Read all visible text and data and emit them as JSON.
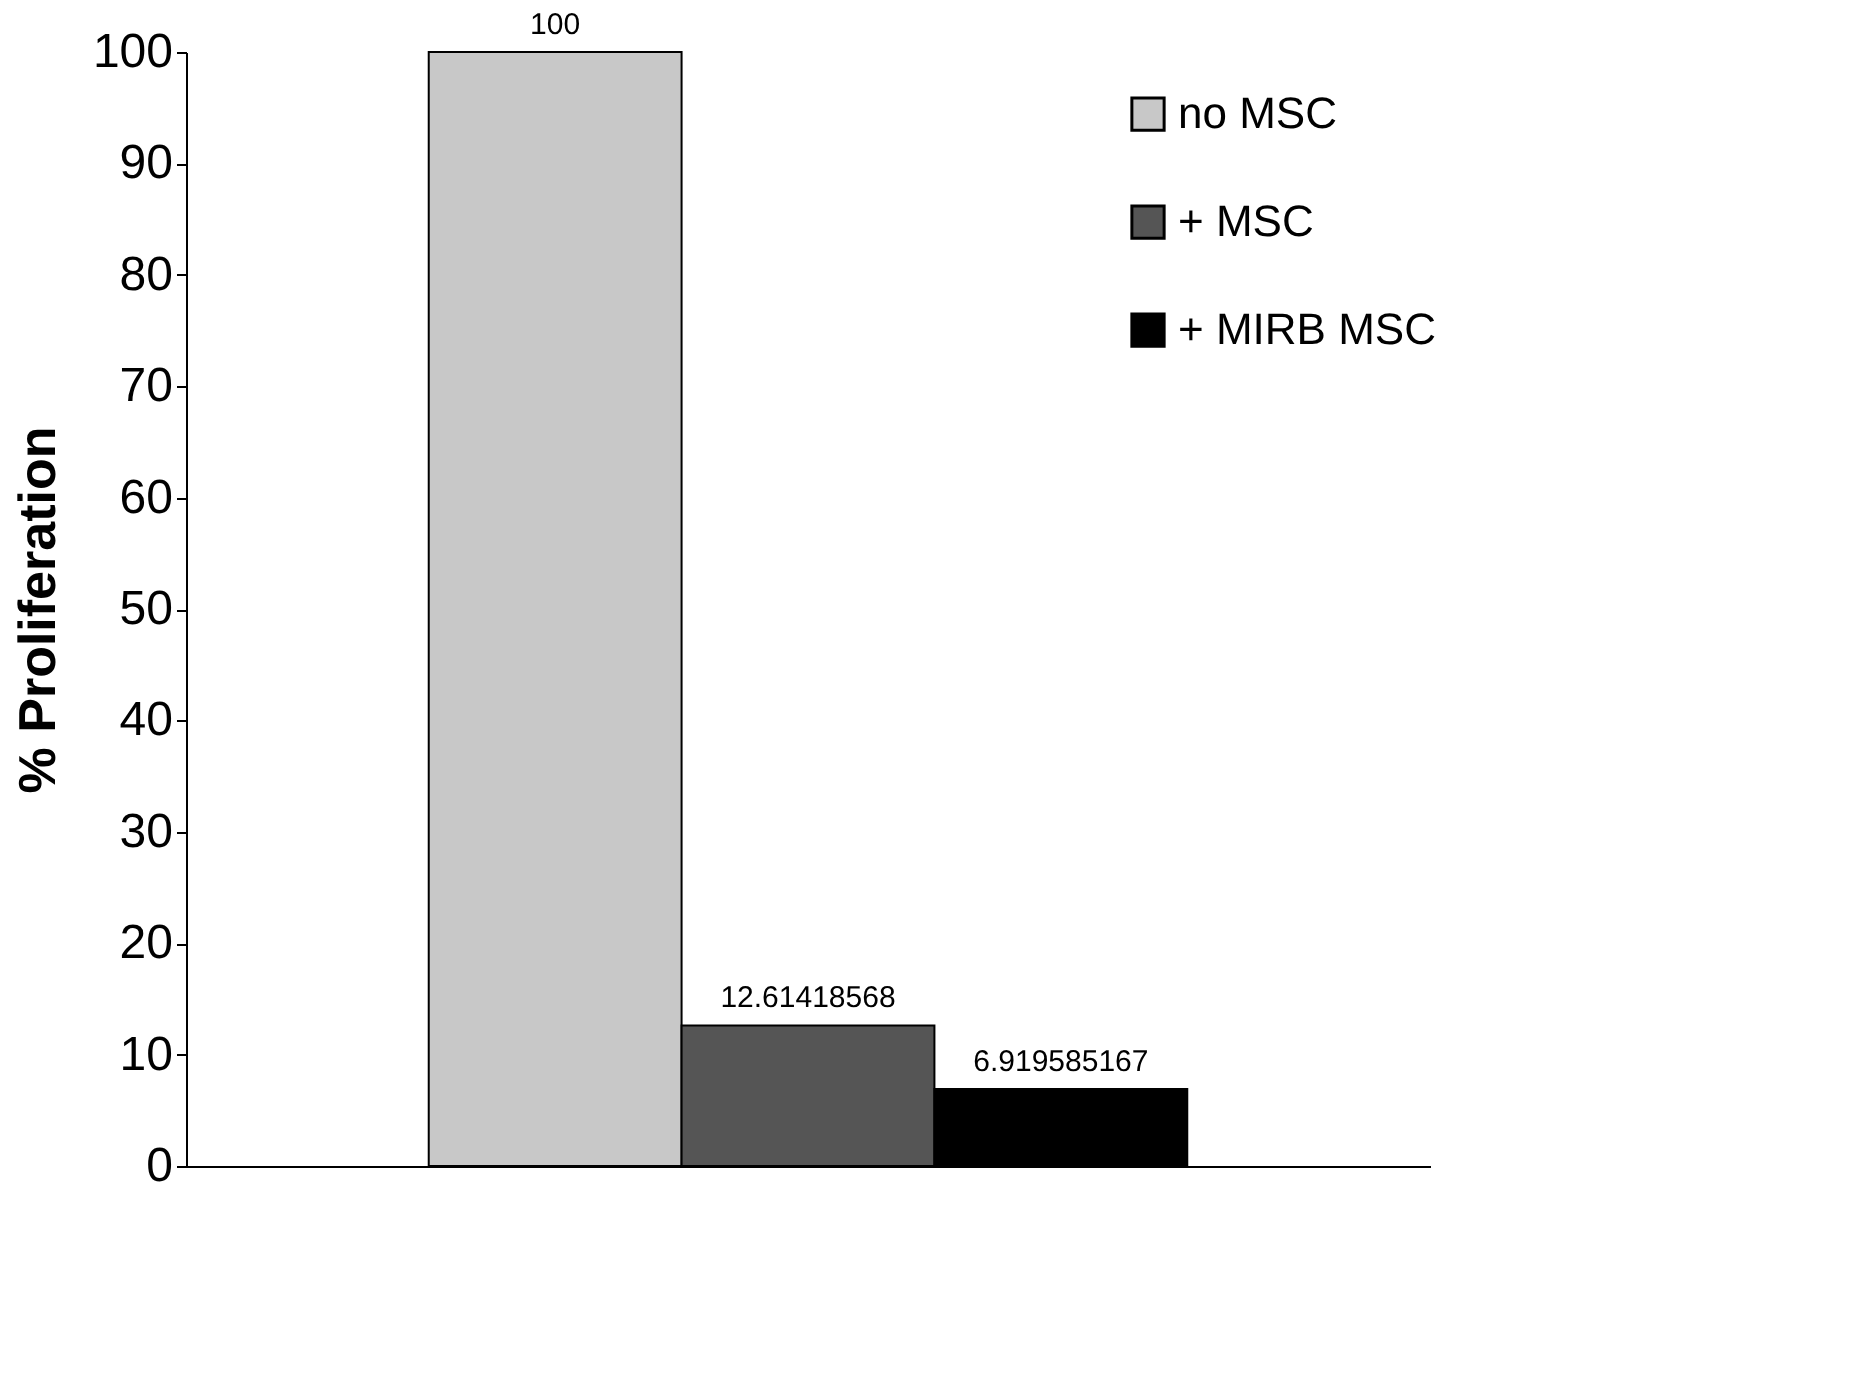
{
  "chart_data": {
    "type": "bar",
    "ylabel": "% Proliferation",
    "categories": [
      null
    ],
    "series": [
      {
        "name": "no MSC",
        "color": "#c8c8c8",
        "values": [
          100
        ]
      },
      {
        "name": "+ MSC",
        "color": "#555555",
        "values": [
          12.61418568
        ]
      },
      {
        "name": "+ MIRB MSC",
        "color": "#000000",
        "values": [
          6.919585167
        ]
      }
    ],
    "ylim": [
      0,
      100
    ],
    "yticks": [
      0,
      10,
      20,
      30,
      40,
      50,
      60,
      70,
      80,
      90,
      100
    ],
    "grid": false,
    "legend": "top right",
    "data_labels": true
  }
}
